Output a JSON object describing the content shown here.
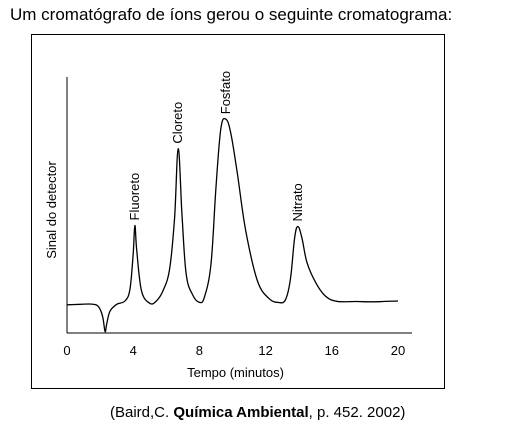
{
  "question": "Um cromatógrafo de íons gerou o seguinte cromatograma:",
  "citation": {
    "prefix": "(Baird,C. ",
    "title": "Química Ambiental",
    "suffix": ", p. 452. 2002)"
  },
  "chart_data": {
    "type": "line",
    "xlabel": "Tempo (minutos)",
    "ylabel": "Sinal do detector",
    "xlim": [
      0,
      20
    ],
    "ylim": [
      0,
      100
    ],
    "xticks": [
      0,
      4,
      8,
      12,
      16,
      20
    ],
    "grid": false,
    "series": [
      {
        "values": [
          [
            0,
            11
          ],
          [
            0.8,
            11.2
          ],
          [
            1.5,
            11.3
          ],
          [
            1.9,
            10.3
          ],
          [
            2.15,
            6.5
          ],
          [
            2.3,
            0.6
          ],
          [
            2.4,
            3.5
          ],
          [
            2.6,
            8.5
          ],
          [
            3.0,
            11.2
          ],
          [
            3.5,
            12.5
          ],
          [
            3.8,
            17
          ],
          [
            4.0,
            31
          ],
          [
            4.1,
            42
          ],
          [
            4.22,
            32
          ],
          [
            4.5,
            16.5
          ],
          [
            5.0,
            11.6
          ],
          [
            5.4,
            12.5
          ],
          [
            5.8,
            16.5
          ],
          [
            6.2,
            25
          ],
          [
            6.5,
            45
          ],
          [
            6.72,
            72
          ],
          [
            6.95,
            46
          ],
          [
            7.2,
            23
          ],
          [
            7.6,
            14.8
          ],
          [
            8.0,
            12
          ],
          [
            8.3,
            14
          ],
          [
            8.7,
            27
          ],
          [
            9.0,
            57
          ],
          [
            9.3,
            80
          ],
          [
            9.6,
            83.5
          ],
          [
            9.9,
            78
          ],
          [
            10.3,
            62
          ],
          [
            10.8,
            40
          ],
          [
            11.5,
            20.5
          ],
          [
            12.2,
            13.5
          ],
          [
            12.8,
            11.9
          ],
          [
            13.2,
            13
          ],
          [
            13.5,
            21
          ],
          [
            13.75,
            37
          ],
          [
            13.95,
            41.6
          ],
          [
            14.2,
            37
          ],
          [
            14.5,
            27.5
          ],
          [
            15.0,
            20
          ],
          [
            15.6,
            14.5
          ],
          [
            16.3,
            12.4
          ],
          [
            17.5,
            12.3
          ],
          [
            18.5,
            12.2
          ],
          [
            20,
            12.5
          ]
        ]
      }
    ],
    "annotations": [
      {
        "text": "Fluoreto",
        "x": 4.1,
        "y": 42
      },
      {
        "text": "Cloreto",
        "x": 6.72,
        "y": 72
      },
      {
        "text": "Fosfato",
        "x": 9.6,
        "y": 83.5
      },
      {
        "text": "Nitrato",
        "x": 13.95,
        "y": 41.6
      }
    ]
  }
}
